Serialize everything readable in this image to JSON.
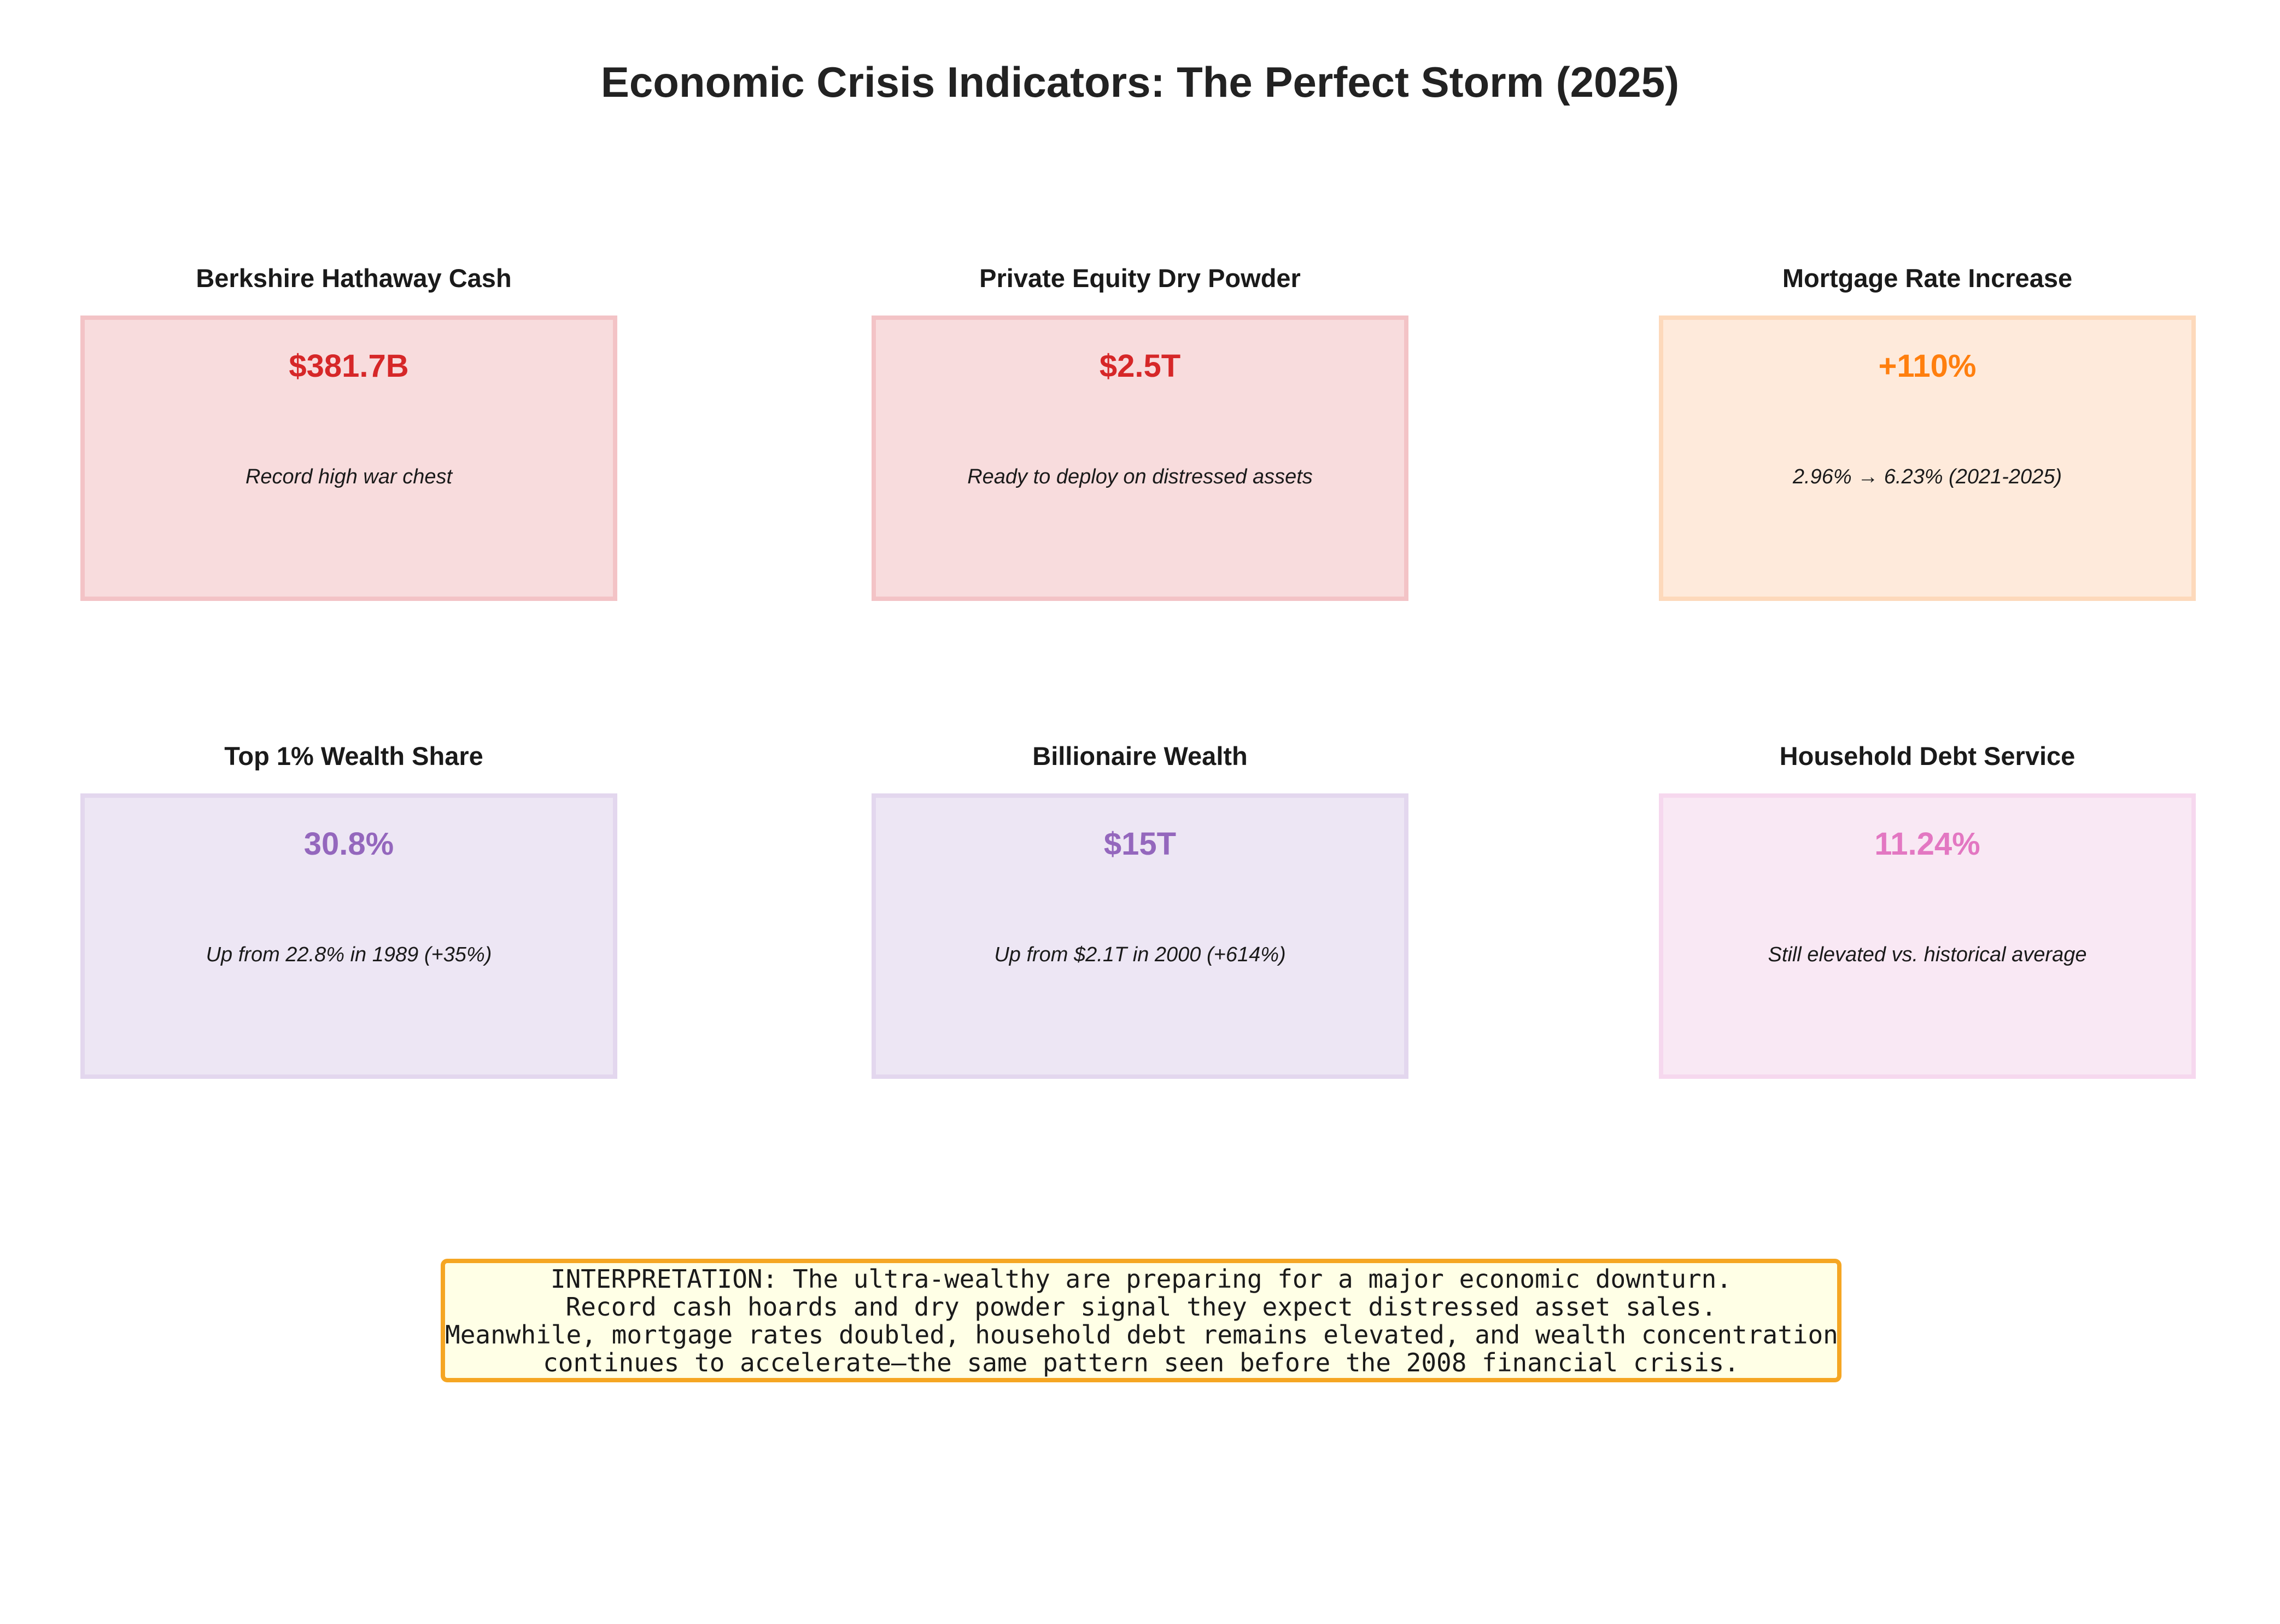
{
  "title": "Economic Crisis Indicators: The Perfect Storm (2025)",
  "chart_data": {
    "type": "table",
    "title": "Economic Crisis Indicators: The Perfect Storm (2025)",
    "cards": [
      {
        "title": "Berkshire Hathaway Cash",
        "value": "$381.7B",
        "description": "Record high war chest",
        "color": "#d62728",
        "fill": "#f8dcdd",
        "border": "#f3c3c6"
      },
      {
        "title": "Private Equity Dry Powder",
        "value": "$2.5T",
        "description": "Ready to deploy on distressed assets",
        "color": "#d62728",
        "fill": "#f8dcdd",
        "border": "#f3c3c6"
      },
      {
        "title": "Mortgage Rate Increase",
        "value": "+110%",
        "description": "2.96% → 6.23% (2021-2025)",
        "color": "#ff7f0e",
        "fill": "#feeadb",
        "border": "#fdd9bb"
      },
      {
        "title": "Top 1% Wealth Share",
        "value": "30.8%",
        "description": "Up from 22.8% in 1989 (+35%)",
        "color": "#9467bd",
        "fill": "#ede6f4",
        "border": "#e3d7ee"
      },
      {
        "title": "Billionaire Wealth",
        "value": "$15T",
        "description": "Up from $2.1T in 2000 (+614%)",
        "color": "#9467bd",
        "fill": "#ede6f4",
        "border": "#e3d7ee"
      },
      {
        "title": "Household Debt Service",
        "value": "11.24%",
        "description": "Still elevated vs. historical average",
        "color": "#e377c2",
        "fill": "#f9e8f4",
        "border": "#f6d8ee"
      }
    ]
  },
  "interpretation": {
    "lines": [
      "INTERPRETATION: The ultra-wealthy are preparing for a major economic downturn.",
      "Record cash hoards and dry powder signal they expect distressed asset sales.",
      "Meanwhile, mortgage rates doubled, household debt remains elevated, and wealth concentration",
      "continues to accelerate—the same pattern seen before the 2008 financial crisis."
    ],
    "border_color": "#f5a623",
    "background_color": "#ffffe6"
  }
}
